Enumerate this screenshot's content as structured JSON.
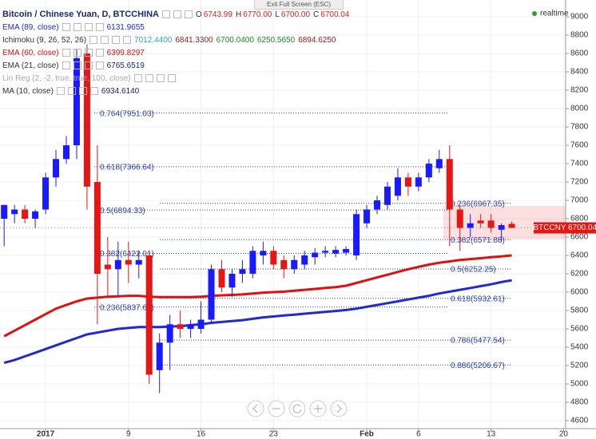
{
  "chart_data": {
    "type": "candlestick",
    "title": "Bitcoin / Chinese Yuan, D, BTCCHINA",
    "ohlc_header": [
      {
        "key": "O",
        "label": "6743.99"
      },
      {
        "key": "H",
        "label": "6770.00"
      },
      {
        "key": "L",
        "label": "6700.00"
      },
      {
        "key": "C",
        "label": "6700.04"
      }
    ],
    "header_value_color": "#e0201c",
    "realtime": "realtime",
    "exit_label": "Exit Full Screen (ESC)",
    "symbol_label": "BTCCNY",
    "up_color": "#1a1aff",
    "down_color": "#e81515",
    "grid": true,
    "x": [
      -4,
      -3,
      -2,
      -1,
      0,
      1,
      2,
      3,
      4,
      5,
      6,
      7,
      8,
      9,
      10,
      11,
      12,
      13,
      14,
      15,
      16,
      17,
      18,
      19,
      20,
      21,
      22,
      23,
      24,
      25,
      26,
      27,
      28,
      29,
      30,
      31,
      32,
      33,
      34,
      35,
      36,
      37,
      38,
      39,
      40,
      41,
      42,
      43,
      44,
      45
    ],
    "open": [
      6800,
      6850,
      6900,
      6800,
      6900,
      7250,
      7450,
      7600,
      8600,
      7200,
      6300,
      6250,
      6350,
      6300,
      6400,
      5150,
      5450,
      5650,
      5600,
      5600,
      5700,
      6250,
      6050,
      6200,
      6200,
      6400,
      6450,
      6350,
      6250,
      6300,
      6380,
      6430,
      6420,
      6430,
      6400,
      6750,
      6900,
      6950,
      7050,
      7250,
      7150,
      7250,
      7350,
      7450,
      6900,
      6700,
      6780,
      6780,
      6680,
      6743.99
    ],
    "high": [
      6950,
      6950,
      6950,
      6900,
      7300,
      7550,
      7700,
      8650,
      8700,
      7600,
      6600,
      6550,
      6550,
      6450,
      6450,
      5550,
      5750,
      5800,
      5700,
      5900,
      6300,
      6350,
      6250,
      6350,
      6500,
      6550,
      6500,
      6400,
      6400,
      6450,
      6480,
      6500,
      6500,
      6500,
      6900,
      6950,
      7050,
      7200,
      7350,
      7300,
      7300,
      7450,
      7550,
      7600,
      6950,
      6850,
      6850,
      6850,
      6750,
      6770
    ],
    "low": [
      6500,
      6750,
      6750,
      6700,
      6850,
      7150,
      7400,
      7450,
      6900,
      5650,
      5950,
      5950,
      6100,
      6150,
      5000,
      4900,
      5150,
      5500,
      5500,
      5550,
      5650,
      6000,
      5950,
      6100,
      6150,
      6300,
      6250,
      6150,
      6200,
      6250,
      6300,
      6380,
      6380,
      6400,
      6350,
      6700,
      6850,
      6900,
      7000,
      7050,
      7100,
      7200,
      7300,
      6500,
      6450,
      6600,
      6700,
      6650,
      6550,
      6700
    ],
    "close": [
      6950,
      6900,
      6800,
      6880,
      7250,
      7450,
      7600,
      8550,
      7150,
      6200,
      6250,
      6350,
      6300,
      6350,
      5100,
      5450,
      5650,
      5600,
      5650,
      5700,
      6250,
      6050,
      6200,
      6250,
      6450,
      6450,
      6300,
      6250,
      6350,
      6400,
      6430,
      6450,
      6460,
      6470,
      6850,
      6900,
      7000,
      7150,
      7250,
      7150,
      7250,
      7400,
      7450,
      6900,
      6700,
      6750,
      6750,
      6700,
      6730,
      6700.04
    ],
    "indicators": [
      {
        "name": "EMA (89, close)",
        "color": "#1f2ad1",
        "width": 3,
        "readings": [
          {
            "text": "6131.9655",
            "color": "#1f2ad1"
          }
        ],
        "values": [
          5230,
          5260,
          5300,
          5340,
          5380,
          5420,
          5460,
          5500,
          5540,
          5560,
          5580,
          5600,
          5610,
          5620,
          5620,
          5620,
          5625,
          5630,
          5640,
          5650,
          5665,
          5675,
          5685,
          5695,
          5710,
          5725,
          5735,
          5745,
          5755,
          5765,
          5775,
          5785,
          5795,
          5805,
          5820,
          5840,
          5860,
          5880,
          5900,
          5920,
          5940,
          5960,
          5985,
          6005,
          6025,
          6045,
          6065,
          6085,
          6110,
          6130
        ]
      },
      {
        "name": "Ichimoku (9, 26, 52, 26)",
        "color": "#333333",
        "readings": [
          {
            "text": "7012.4400",
            "color": "#3aa0c8"
          },
          {
            "text": "6841.3300",
            "color": "#8b1a1a"
          },
          {
            "text": "6700.0400",
            "color": "#1b8a1b"
          },
          {
            "text": "6250.5650",
            "color": "#1b8a1b"
          },
          {
            "text": "6894.6250",
            "color": "#8b1a1a"
          }
        ]
      },
      {
        "name": "EMA (60, close)",
        "color": "#e01010",
        "width": 3,
        "readings": [
          {
            "text": "6399.8297",
            "color": "#e01010"
          }
        ],
        "values": [
          5520,
          5580,
          5640,
          5700,
          5760,
          5820,
          5860,
          5900,
          5930,
          5940,
          5950,
          5955,
          5960,
          5960,
          5950,
          5945,
          5945,
          5945,
          5945,
          5950,
          5960,
          5965,
          5970,
          5975,
          5985,
          5995,
          6000,
          6005,
          6015,
          6025,
          6035,
          6045,
          6055,
          6070,
          6100,
          6130,
          6160,
          6190,
          6220,
          6250,
          6275,
          6300,
          6320,
          6335,
          6350,
          6360,
          6370,
          6380,
          6390,
          6400
        ]
      },
      {
        "name": "EMA (21, close)",
        "color": "#333333",
        "readings": [
          {
            "text": "6765.6519",
            "color": "#1a237e"
          }
        ]
      },
      {
        "name": "Lin Reg (2, -2, true, true, 100, close)",
        "color": "#aaaaaa",
        "readings": []
      },
      {
        "name": "MA (10, close)",
        "color": "#333333",
        "readings": [
          {
            "text": "6934.6140",
            "color": "#1a237e"
          }
        ]
      }
    ],
    "fib_a": [
      {
        "label": "0.764(7951.03)",
        "price": 7951.03
      },
      {
        "label": "0.618(7366.64)",
        "price": 7366.64
      },
      {
        "label": "0.5(6894.33)",
        "price": 6894.33
      },
      {
        "label": "0.382(6422.01)",
        "price": 6422.01
      },
      {
        "label": "0.236(5837.63)",
        "price": 5837.63
      }
    ],
    "fib_b": [
      {
        "label": "0.236(6967.35)",
        "price": 6967.35
      },
      {
        "label": "0.382(6571.88)",
        "price": 6571.88
      },
      {
        "label": "0.5(6252.25)",
        "price": 6252.25
      },
      {
        "label": "0.618(5932.61)",
        "price": 5932.61
      },
      {
        "label": "0.786(5477.54)",
        "price": 5477.54
      },
      {
        "label": "0.886(5206.67)",
        "price": 5206.67
      }
    ],
    "fib_color": "#2d3fb0",
    "xlim": [
      -4.4,
      50.2
    ],
    "xticks": [
      {
        "value": 0,
        "label": "2017"
      },
      {
        "value": 8,
        "label": "9"
      },
      {
        "value": 15,
        "label": "16"
      },
      {
        "value": 22,
        "label": "23"
      },
      {
        "value": 31,
        "label": "Feb"
      },
      {
        "value": 36,
        "label": "6"
      },
      {
        "value": 43,
        "label": "13"
      },
      {
        "value": 50,
        "label": "20"
      }
    ],
    "ylim": [
      4513,
      9183
    ],
    "yticks": [
      4600,
      4800,
      5000,
      5200,
      5400,
      5600,
      5800,
      6000,
      6200,
      6400,
      6600,
      6800,
      7000,
      7200,
      7400,
      7600,
      7800,
      8000,
      8200,
      8400,
      8600,
      8800,
      9000
    ]
  }
}
